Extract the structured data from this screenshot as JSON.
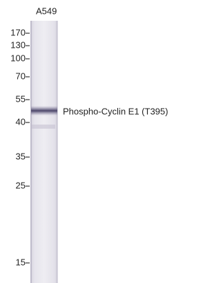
{
  "blot": {
    "sample_label": "A549",
    "markers": [
      "170",
      "130",
      "100",
      "70",
      "55",
      "40",
      "35",
      "25",
      "15"
    ],
    "band_label": "Phospho-Cyclin E1 (T395)"
  }
}
